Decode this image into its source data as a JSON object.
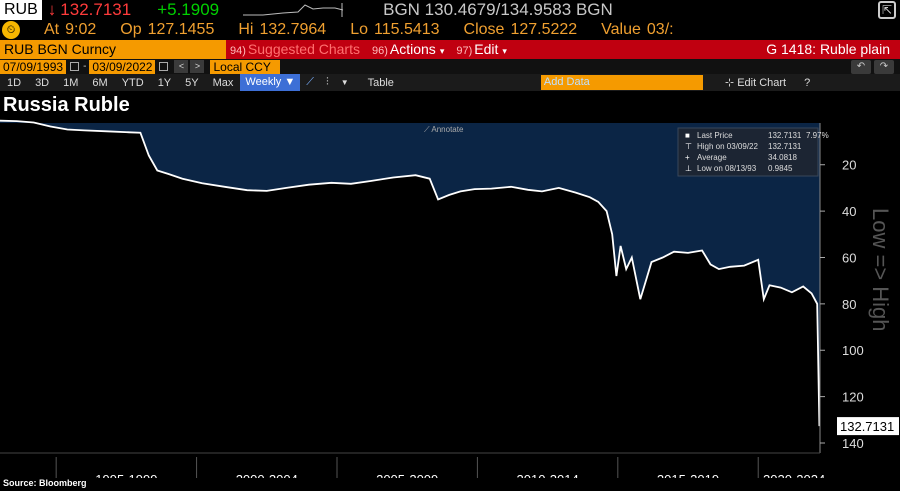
{
  "header": {
    "ticker": "RUB",
    "arrow": "↓",
    "last": "132.7131",
    "change": "+5.1909",
    "bid_ask": "BGN 130.4679/134.9583 BGN"
  },
  "quote": {
    "clock_icon": "clock-icon",
    "time_label": "At",
    "time": "9:02",
    "open_label": "Op",
    "open": "127.1455",
    "high_label": "Hi",
    "high": "132.7964",
    "low_label": "Lo",
    "low": "115.5413",
    "close_label": "Close",
    "close": "127.5222",
    "value_label": "Value",
    "value": "03/:"
  },
  "function_bar": {
    "security": "RUB BGN Curncy",
    "menu": [
      {
        "num": "94)",
        "label": "Suggested Charts",
        "dim": true,
        "dd": false
      },
      {
        "num": "96)",
        "label": "Actions",
        "dim": false,
        "dd": true
      },
      {
        "num": "97)",
        "label": "Edit",
        "dim": false,
        "dd": true
      }
    ],
    "chart_name": "G 1418: Ruble plain"
  },
  "range_bar": {
    "start": "07/09/1993",
    "end": "03/09/2022",
    "currency": "Local CCY"
  },
  "toolbar": {
    "periods": [
      "1D",
      "3D",
      "1M",
      "6M",
      "YTD",
      "1Y",
      "5Y",
      "Max"
    ],
    "frequency": "Weekly",
    "table_label": "Table",
    "add_data_placeholder": "Add Data",
    "edit_chart": "Edit Chart",
    "help": "?"
  },
  "chart_title": "Russia Ruble",
  "annotate_label": "Annotate",
  "legend": [
    {
      "label": "Last Price",
      "value": "132.7131",
      "extra": "7.97%"
    },
    {
      "label": "High on 03/09/22",
      "value": "132.7131",
      "extra": ""
    },
    {
      "label": "Average",
      "value": "34.0818",
      "extra": ""
    },
    {
      "label": "Low on 08/13/93",
      "value": "0.9845",
      "extra": ""
    }
  ],
  "source": "Source: Bloomberg",
  "colors": {
    "orange": "#f59a00",
    "red": "#c00010",
    "area": "#0b2545",
    "up": "#00d000",
    "down": "#ff3b3b"
  },
  "chart_data": {
    "type": "area",
    "title": "Russia Ruble",
    "ylabel": "Low => High",
    "y_inverted": true,
    "ylim": [
      0,
      140
    ],
    "yticks": [
      20,
      40,
      60,
      80,
      100,
      120,
      140
    ],
    "xlabels": [
      "1995-1999",
      "2000-2004",
      "2005-2009",
      "2010-2014",
      "2015-2019",
      "2020-2024"
    ],
    "last_value_label": "132.7131",
    "x": [
      1993.0,
      1993.6,
      1994.2,
      1994.8,
      1995.4,
      1996.0,
      1996.8,
      1997.6,
      1998.0,
      1998.3,
      1998.6,
      1999.0,
      1999.5,
      2000.2,
      2001.0,
      2001.8,
      2002.5,
      2003.2,
      2004.0,
      2004.8,
      2005.5,
      2006.2,
      2007.0,
      2007.8,
      2008.3,
      2008.6,
      2009.0,
      2009.4,
      2009.9,
      2010.5,
      2011.2,
      2011.8,
      2012.3,
      2012.9,
      2013.5,
      2014.0,
      2014.3,
      2014.6,
      2014.8,
      2014.95,
      2015.1,
      2015.3,
      2015.5,
      2015.8,
      2016.0,
      2016.2,
      2016.6,
      2017.0,
      2017.5,
      2018.0,
      2018.3,
      2018.6,
      2019.0,
      2019.5,
      2020.0,
      2020.2,
      2020.4,
      2020.8,
      2021.2,
      2021.6,
      2021.9,
      2022.1,
      2022.18
    ],
    "values": [
      1.0,
      1.2,
      1.8,
      3.5,
      4.8,
      5.2,
      5.6,
      6.0,
      6.2,
      16.0,
      22.5,
      24.0,
      26.0,
      28.0,
      29.5,
      31.0,
      31.3,
      30.0,
      28.6,
      27.8,
      28.2,
      27.0,
      25.5,
      24.5,
      26.0,
      35.0,
      33.0,
      31.5,
      30.5,
      30.3,
      29.5,
      30.8,
      31.5,
      30.0,
      32.0,
      34.0,
      36.0,
      40.0,
      50.0,
      68.0,
      55.0,
      65.0,
      60.0,
      78.0,
      70.0,
      62.0,
      60.0,
      57.5,
      58.0,
      57.0,
      63.0,
      65.0,
      64.0,
      63.5,
      61.0,
      78.0,
      72.0,
      73.0,
      75.0,
      72.5,
      75.5,
      80.0,
      132.7131
    ]
  }
}
